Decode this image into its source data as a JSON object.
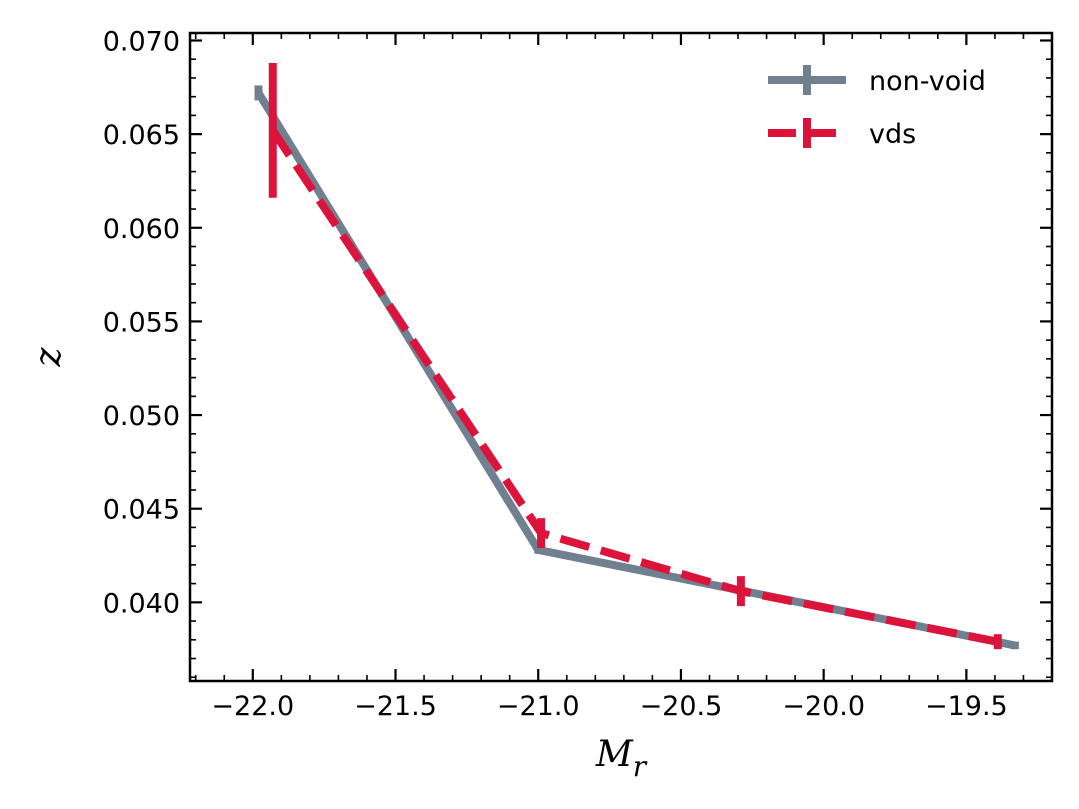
{
  "chart_data": {
    "type": "line",
    "title": "",
    "xlabel": "M",
    "xlabel_subscript": "r",
    "ylabel": "z",
    "xlim": [
      -22.22,
      -19.2
    ],
    "ylim": [
      0.0358,
      0.0704
    ],
    "xticks": [
      -22.0,
      -21.5,
      -21.0,
      -20.5,
      -20.0,
      -19.5
    ],
    "xtick_labels": [
      "−22.0",
      "−21.5",
      "−21.0",
      "−20.5",
      "−20.0",
      "−19.5"
    ],
    "yticks": [
      0.04,
      0.045,
      0.05,
      0.055,
      0.06,
      0.065,
      0.07
    ],
    "ytick_labels": [
      "0.040",
      "0.045",
      "0.050",
      "0.055",
      "0.060",
      "0.065",
      "0.070"
    ],
    "legend_position": "top-right",
    "series": [
      {
        "name": "non-void",
        "color": "#708090",
        "linestyle": "solid",
        "x": [
          -21.98,
          -21.0,
          -20.28,
          -19.33
        ],
        "y": [
          0.0672,
          0.0428,
          0.0406,
          0.0377
        ],
        "yerr": [
          0.0004,
          0.0002,
          0.0002,
          0.0002
        ]
      },
      {
        "name": "vds",
        "color": "#dc143c",
        "linestyle": "dashed",
        "x": [
          -21.93,
          -20.99,
          -20.29,
          -19.39
        ],
        "y": [
          0.0652,
          0.0437,
          0.0406,
          0.0379
        ],
        "yerr": [
          0.0036,
          0.0008,
          0.0008,
          0.0004
        ]
      }
    ]
  }
}
